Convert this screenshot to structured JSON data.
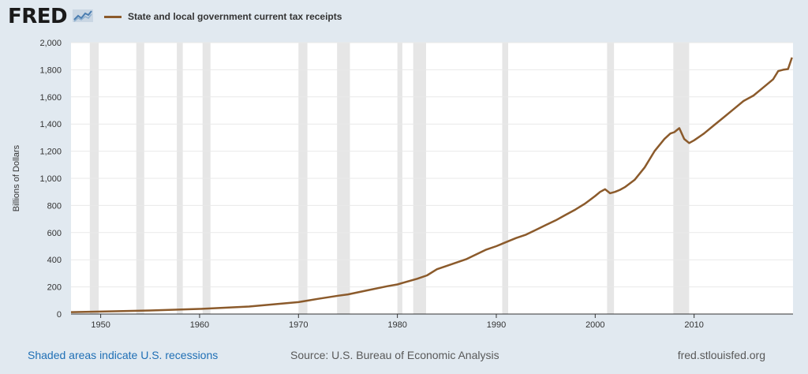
{
  "brand": {
    "logo_text": "FRED"
  },
  "colors": {
    "series": "#8b5a2b",
    "recession": "#e6e6e6",
    "grid": "#e9e9e9",
    "link": "#1f6fb5",
    "background": "#e1e9f0"
  },
  "chart_data": {
    "type": "line",
    "series": [
      {
        "name": "State and local government current tax receipts",
        "points": [
          [
            1947.0,
            14
          ],
          [
            1950.0,
            18
          ],
          [
            1955.0,
            26
          ],
          [
            1960.0,
            38
          ],
          [
            1965.0,
            55
          ],
          [
            1970.0,
            88
          ],
          [
            1972.0,
            112
          ],
          [
            1974.0,
            135
          ],
          [
            1975.0,
            145
          ],
          [
            1977.0,
            175
          ],
          [
            1979.0,
            205
          ],
          [
            1980.0,
            218
          ],
          [
            1982.0,
            260
          ],
          [
            1983.0,
            285
          ],
          [
            1984.0,
            330
          ],
          [
            1985.0,
            355
          ],
          [
            1987.0,
            405
          ],
          [
            1988.0,
            440
          ],
          [
            1989.0,
            475
          ],
          [
            1990.0,
            500
          ],
          [
            1991.0,
            530
          ],
          [
            1992.0,
            560
          ],
          [
            1993.0,
            585
          ],
          [
            1994.0,
            620
          ],
          [
            1995.0,
            655
          ],
          [
            1996.0,
            690
          ],
          [
            1997.0,
            730
          ],
          [
            1998.0,
            770
          ],
          [
            1999.0,
            815
          ],
          [
            2000.0,
            870
          ],
          [
            2000.5,
            900
          ],
          [
            2001.0,
            920
          ],
          [
            2001.5,
            890
          ],
          [
            2002.0,
            900
          ],
          [
            2002.5,
            915
          ],
          [
            2003.0,
            935
          ],
          [
            2004.0,
            990
          ],
          [
            2005.0,
            1080
          ],
          [
            2006.0,
            1200
          ],
          [
            2007.0,
            1290
          ],
          [
            2007.6,
            1330
          ],
          [
            2008.0,
            1340
          ],
          [
            2008.5,
            1370
          ],
          [
            2009.0,
            1290
          ],
          [
            2009.5,
            1260
          ],
          [
            2010.0,
            1280
          ],
          [
            2011.0,
            1330
          ],
          [
            2012.0,
            1390
          ],
          [
            2013.0,
            1450
          ],
          [
            2014.0,
            1510
          ],
          [
            2015.0,
            1570
          ],
          [
            2016.0,
            1610
          ],
          [
            2017.0,
            1670
          ],
          [
            2018.0,
            1730
          ],
          [
            2018.5,
            1790
          ],
          [
            2019.0,
            1800
          ],
          [
            2019.5,
            1805
          ],
          [
            2019.9,
            1890
          ]
        ]
      }
    ],
    "recessions": [
      [
        1948.9,
        1949.8
      ],
      [
        1953.6,
        1954.4
      ],
      [
        1957.7,
        1958.3
      ],
      [
        1960.3,
        1961.1
      ],
      [
        1970.0,
        1970.9
      ],
      [
        1973.9,
        1975.2
      ],
      [
        1980.0,
        1980.5
      ],
      [
        1981.6,
        1982.9
      ],
      [
        1990.6,
        1991.2
      ],
      [
        2001.2,
        2001.9
      ],
      [
        2007.9,
        2009.5
      ]
    ],
    "ylabel": "Billions of Dollars",
    "y_ticks": [
      0,
      200,
      400,
      600,
      800,
      1000,
      1200,
      1400,
      1600,
      1800,
      2000
    ],
    "y_tick_labels": [
      "0",
      "200",
      "400",
      "600",
      "800",
      "1,000",
      "1,200",
      "1,400",
      "1,600",
      "1,800",
      "2,000"
    ],
    "x_ticks": [
      1950,
      1960,
      1970,
      1980,
      1990,
      2000,
      2010
    ],
    "x_tick_labels": [
      "1950",
      "1960",
      "1970",
      "1980",
      "1990",
      "2000",
      "2010"
    ],
    "xlim": [
      1947,
      2020
    ],
    "ylim": [
      0,
      2000
    ],
    "grid": true,
    "legend_placement": "top-left"
  },
  "footer": {
    "note": "Shaded areas indicate U.S. recessions",
    "source": "Source: U.S. Bureau of Economic Analysis",
    "site": "fred.stlouisfed.org"
  }
}
